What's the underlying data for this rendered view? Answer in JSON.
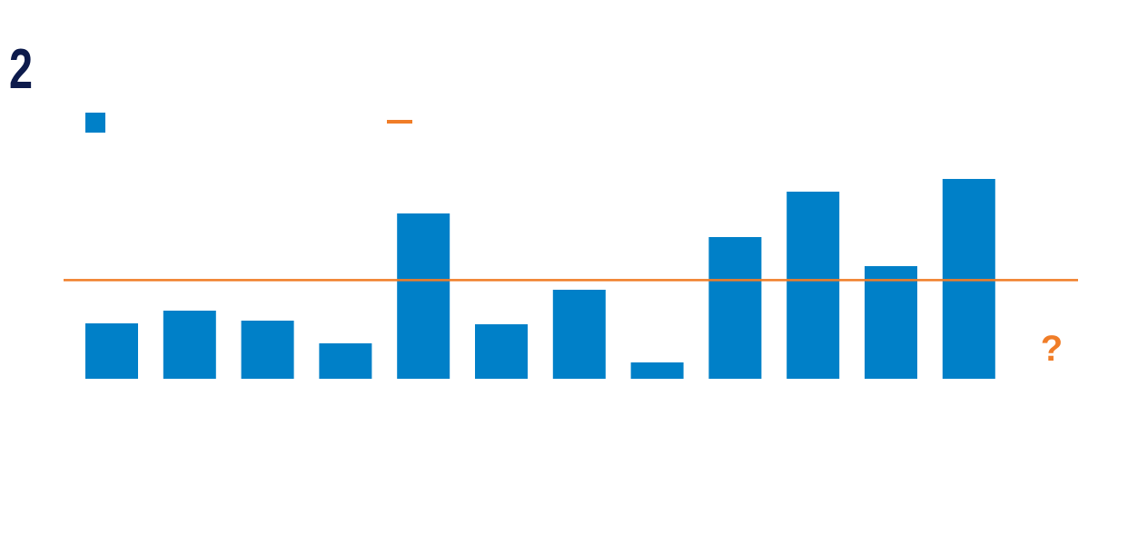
{
  "chart_data": {
    "type": "bar",
    "title": "2",
    "annotation": "?",
    "categories": [
      null,
      null,
      null,
      null,
      null,
      null,
      null,
      null,
      null,
      null,
      null,
      null
    ],
    "values": [
      61,
      75,
      64,
      39,
      182,
      60,
      98,
      18,
      156,
      206,
      124,
      220
    ],
    "color": "#0080c8",
    "reference_line": 108.6,
    "reference_color": "#f07d28",
    "ylim": [
      0,
      250
    ],
    "grid": false
  }
}
